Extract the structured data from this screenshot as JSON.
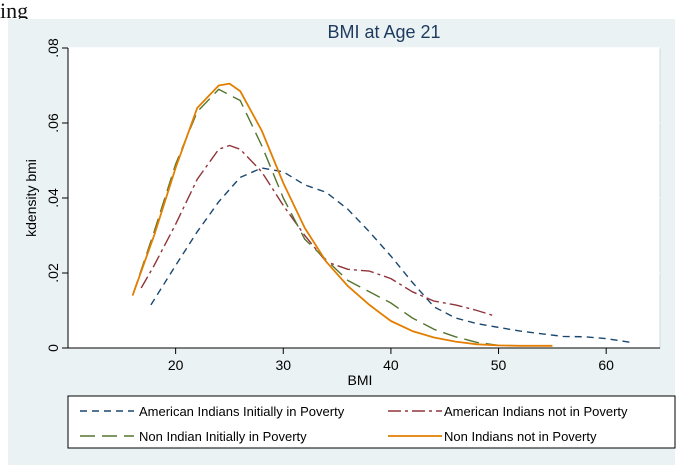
{
  "lead_text": "ing",
  "chart_data": {
    "type": "line",
    "title": "BMI at Age 21",
    "xlabel": "BMI",
    "ylabel": "kdensity bmi",
    "xlim": [
      10,
      65
    ],
    "ylim": [
      0,
      0.08
    ],
    "x_ticks": [
      20,
      30,
      40,
      50,
      60
    ],
    "y_ticks": [
      0,
      0.02,
      0.04,
      0.06,
      0.08
    ],
    "x_tick_labels": [
      "20",
      "30",
      "40",
      "50",
      "60"
    ],
    "y_tick_labels": [
      "0",
      ".02",
      ".04",
      ".06",
      ".08"
    ],
    "grid": "horizontal",
    "legend_position": "bottom",
    "colors": {
      "plot_region_bg": "#eaf2f3",
      "grid": "#ffffff",
      "series": [
        "#1a476f",
        "#90353b",
        "#55752f",
        "#e37e00"
      ]
    },
    "series": [
      {
        "name": "American Indians Initially in Poverty",
        "dash": "dash",
        "x": [
          17.7,
          20,
          22,
          24,
          26,
          28,
          30,
          32,
          34,
          36,
          38,
          40,
          42,
          44,
          46,
          48,
          50,
          52,
          54,
          56,
          58,
          60,
          62.3
        ],
        "y": [
          0.0115,
          0.022,
          0.031,
          0.039,
          0.0455,
          0.048,
          0.047,
          0.0435,
          0.0415,
          0.037,
          0.031,
          0.0245,
          0.0175,
          0.011,
          0.008,
          0.0065,
          0.0055,
          0.0045,
          0.0038,
          0.0031,
          0.003,
          0.0025,
          0.0015
        ]
      },
      {
        "name": "American Indians not in Poverty",
        "dash": "longdash-dot",
        "x": [
          16.8,
          18,
          20,
          22,
          24,
          25,
          26,
          28,
          30,
          32,
          34,
          36,
          38,
          40,
          42,
          44,
          46,
          48,
          49.7
        ],
        "y": [
          0.016,
          0.022,
          0.033,
          0.045,
          0.053,
          0.054,
          0.053,
          0.047,
          0.038,
          0.03,
          0.023,
          0.021,
          0.0205,
          0.0185,
          0.015,
          0.0125,
          0.0115,
          0.01,
          0.0085
        ]
      },
      {
        "name": "Non Indian Initially in Poverty",
        "dash": "longdash",
        "x": [
          16,
          18,
          20,
          22,
          24,
          26,
          28,
          30,
          32,
          34,
          36,
          38,
          40,
          42,
          44,
          46,
          48,
          50
        ],
        "y": [
          0.014,
          0.031,
          0.049,
          0.063,
          0.069,
          0.066,
          0.054,
          0.04,
          0.029,
          0.0235,
          0.018,
          0.015,
          0.012,
          0.008,
          0.005,
          0.003,
          0.0015,
          0.0007
        ]
      },
      {
        "name": "Non Indians not in Poverty",
        "dash": "solid",
        "x": [
          16,
          18,
          20,
          22,
          24,
          25,
          26,
          28,
          30,
          32,
          34,
          36,
          38,
          40,
          42,
          44,
          46,
          48,
          50,
          52,
          55
        ],
        "y": [
          0.014,
          0.03,
          0.048,
          0.064,
          0.07,
          0.0705,
          0.0685,
          0.058,
          0.044,
          0.032,
          0.023,
          0.0165,
          0.0115,
          0.0072,
          0.0045,
          0.0028,
          0.0017,
          0.001,
          0.0007,
          0.0006,
          0.0006
        ]
      }
    ]
  }
}
